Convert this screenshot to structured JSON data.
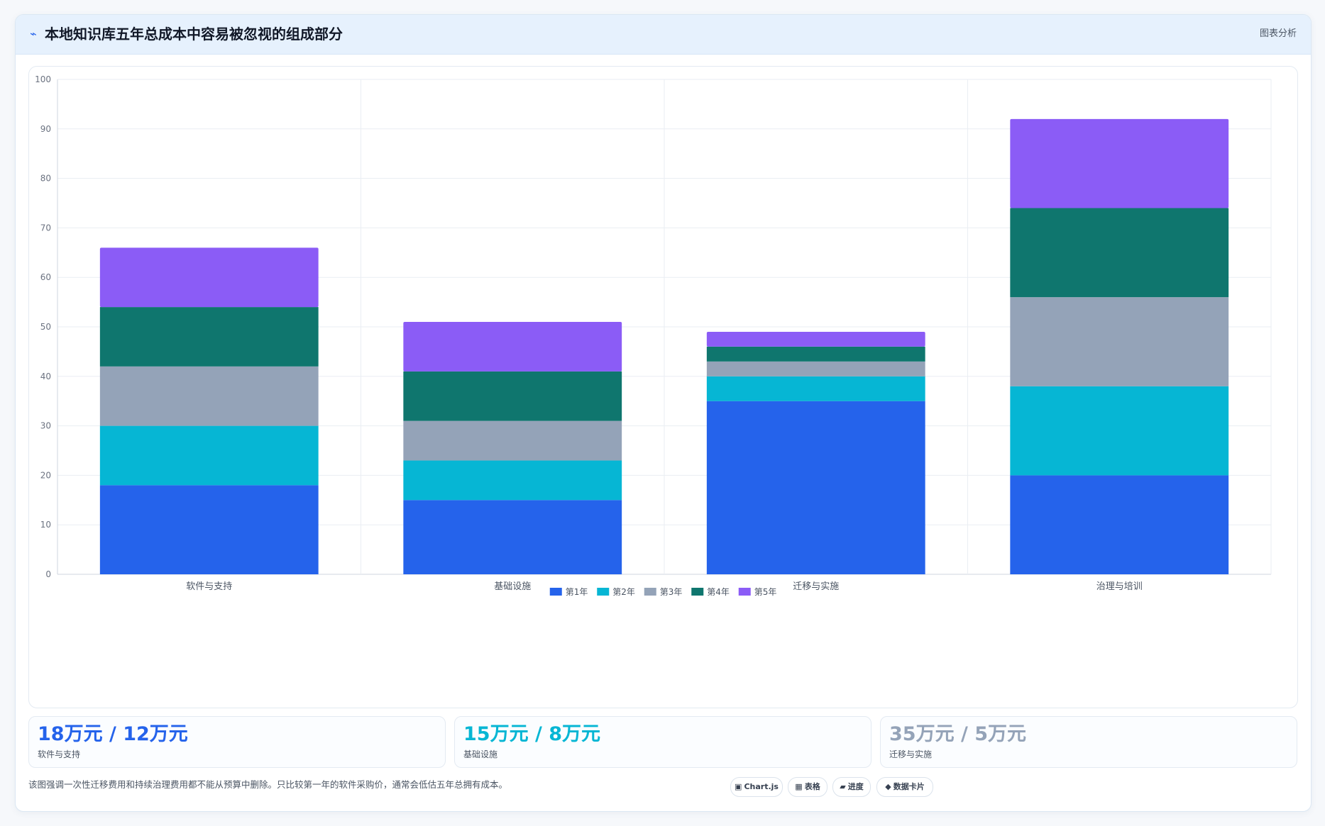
{
  "header": {
    "title": "本地知识库五年总成本中容易被忽视的组成部分",
    "action_label": "图表分析",
    "icon": "trend-icon"
  },
  "chart_data": {
    "type": "bar",
    "stacked": true,
    "categories": [
      "软件与支持",
      "基础设施",
      "迁移与实施",
      "治理与培训"
    ],
    "series": [
      {
        "name": "第1年",
        "color": "#2563eb",
        "values": [
          18,
          15,
          35,
          20
        ]
      },
      {
        "name": "第2年",
        "color": "#06b6d4",
        "values": [
          12,
          8,
          5,
          18
        ]
      },
      {
        "name": "第3年",
        "color": "#94a3b8",
        "values": [
          12,
          8,
          3,
          18
        ]
      },
      {
        "name": "第4年",
        "color": "#0f766e",
        "values": [
          12,
          10,
          3,
          18
        ]
      },
      {
        "name": "第5年",
        "color": "#8b5cf6",
        "values": [
          12,
          10,
          3,
          18
        ]
      }
    ],
    "ylim": [
      0,
      100
    ],
    "yticks": [
      0,
      10,
      20,
      30,
      40,
      50,
      60,
      70,
      80,
      90,
      100
    ],
    "grid": true,
    "legend_position": "bottom"
  },
  "stats": [
    {
      "value": "18万元 / 12万元",
      "label": "软件与支持",
      "color": "#2563eb"
    },
    {
      "value": "15万元 / 8万元",
      "label": "基础设施",
      "color": "#06b6d4"
    },
    {
      "value": "35万元 / 5万元",
      "label": "迁移与实施",
      "color": "#94a3b8"
    }
  ],
  "footnote": "该图强调一次性迁移费用和持续治理费用都不能从预算中删除。只比较第一年的软件采购价，通常会低估五年总拥有成本。",
  "chips": [
    {
      "icon": "▣",
      "label": "Chart.js"
    },
    {
      "icon": "▦",
      "label": "表格"
    },
    {
      "icon": "▰",
      "label": "进度"
    },
    {
      "icon": "◆",
      "label": "数据卡片"
    }
  ]
}
